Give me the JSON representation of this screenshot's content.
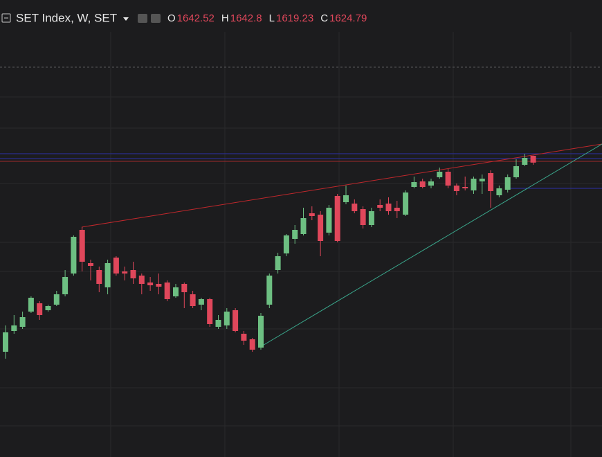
{
  "chart_data": {
    "type": "candlestick",
    "title": "SET Index, W, SET",
    "ohlc_labels": [
      "O",
      "H",
      "L",
      "C"
    ],
    "up_color": "#6dbf82",
    "down_color": "#e0475b",
    "ylim": [
      859.5,
      2047.5
    ],
    "open": [
      1133.1,
      1187.1,
      1197.9,
      1237.5,
      1259.1,
      1241.1,
      1255.5,
      1282.5,
      1336.5,
      1449.9,
      1363.5,
      1345.5,
      1300.5,
      1377.9,
      1341.9,
      1345.5,
      1331.1,
      1313.1,
      1309.5,
      1313.1,
      1277.1,
      1309.5,
      1282.5,
      1255.5,
      1269.9,
      1197.9,
      1201.5,
      1241.1,
      1179.9,
      1165.5,
      1143.9,
      1255.5,
      1345.5,
      1388.7,
      1426.5,
      1439.1,
      1493.1,
      1489.5,
      1442.7,
      1538.1,
      1521.9,
      1518.3,
      1503.9,
      1462.5,
      1514.7,
      1518.3,
      1507.5,
      1489.5,
      1561.5,
      1575.9,
      1565.1,
      1586.7,
      1601.1,
      1565.1,
      1561.5,
      1552.5,
      1575.9,
      1597.5,
      1539.9,
      1554.3,
      1586.7,
      1619.1,
      1642.52
    ],
    "high": [
      1201.5,
      1228.5,
      1237.5,
      1277.1,
      1264.5,
      1255.5,
      1291.5,
      1345.5,
      1435.5,
      1457.1,
      1372.5,
      1354.5,
      1372.5,
      1381.5,
      1354.5,
      1367.1,
      1336.5,
      1327.5,
      1336.5,
      1318.5,
      1309.5,
      1313.1,
      1291.5,
      1273.5,
      1273.5,
      1228.5,
      1246.5,
      1246.5,
      1187.1,
      1169.1,
      1233.9,
      1336.5,
      1390.5,
      1439.1,
      1462.5,
      1507.5,
      1511.1,
      1498.5,
      1514.7,
      1543.5,
      1565.1,
      1529.1,
      1511.1,
      1507.5,
      1529.1,
      1534.5,
      1525.5,
      1552.5,
      1588.5,
      1583.1,
      1583.1,
      1611.9,
      1608.3,
      1570.5,
      1588.5,
      1588.5,
      1593.9,
      1604.7,
      1565.1,
      1593.9,
      1633.5,
      1647.9,
      1642.8
    ],
    "low": [
      1115.1,
      1179.9,
      1192.5,
      1233.9,
      1215.9,
      1237.5,
      1251.9,
      1277.1,
      1331.1,
      1341.9,
      1318.5,
      1287.9,
      1282.5,
      1331.1,
      1318.5,
      1309.5,
      1282.5,
      1291.5,
      1282.5,
      1264.5,
      1273.5,
      1246.5,
      1246.5,
      1241.1,
      1197.9,
      1192.5,
      1192.5,
      1183.5,
      1151.1,
      1133.1,
      1138.5,
      1246.5,
      1336.5,
      1381.5,
      1413.9,
      1435.5,
      1475.1,
      1381.5,
      1435.5,
      1417.5,
      1516.5,
      1493.1,
      1453.5,
      1457.1,
      1498.5,
      1489.5,
      1480.5,
      1485.9,
      1557.9,
      1557.9,
      1557.9,
      1583.1,
      1557.9,
      1539.9,
      1552.5,
      1543.5,
      1543.5,
      1507.5,
      1534.5,
      1547.1,
      1583.1,
      1615.5,
      1619.23
    ],
    "close": [
      1183.5,
      1201.5,
      1223.1,
      1273.5,
      1228.5,
      1251.9,
      1282.5,
      1327.5,
      1431.9,
      1367.1,
      1356.3,
      1309.5,
      1363.5,
      1336.5,
      1336.5,
      1323.9,
      1309.5,
      1305.9,
      1302.3,
      1269.9,
      1300.5,
      1287.9,
      1251.9,
      1269.9,
      1205.1,
      1215.9,
      1237.5,
      1187.1,
      1161.9,
      1138.5,
      1226.7,
      1331.1,
      1381.5,
      1435.5,
      1449.9,
      1480.5,
      1485.9,
      1421.1,
      1507.5,
      1421.1,
      1539.9,
      1498.5,
      1462.5,
      1498.5,
      1507.5,
      1498.5,
      1498.5,
      1547.1,
      1574.1,
      1561.5,
      1575.9,
      1601.1,
      1565.1,
      1550.7,
      1557.9,
      1583.1,
      1583.1,
      1550.7,
      1557.9,
      1586.7,
      1615.5,
      1637.1,
      1624.79
    ]
  }
}
